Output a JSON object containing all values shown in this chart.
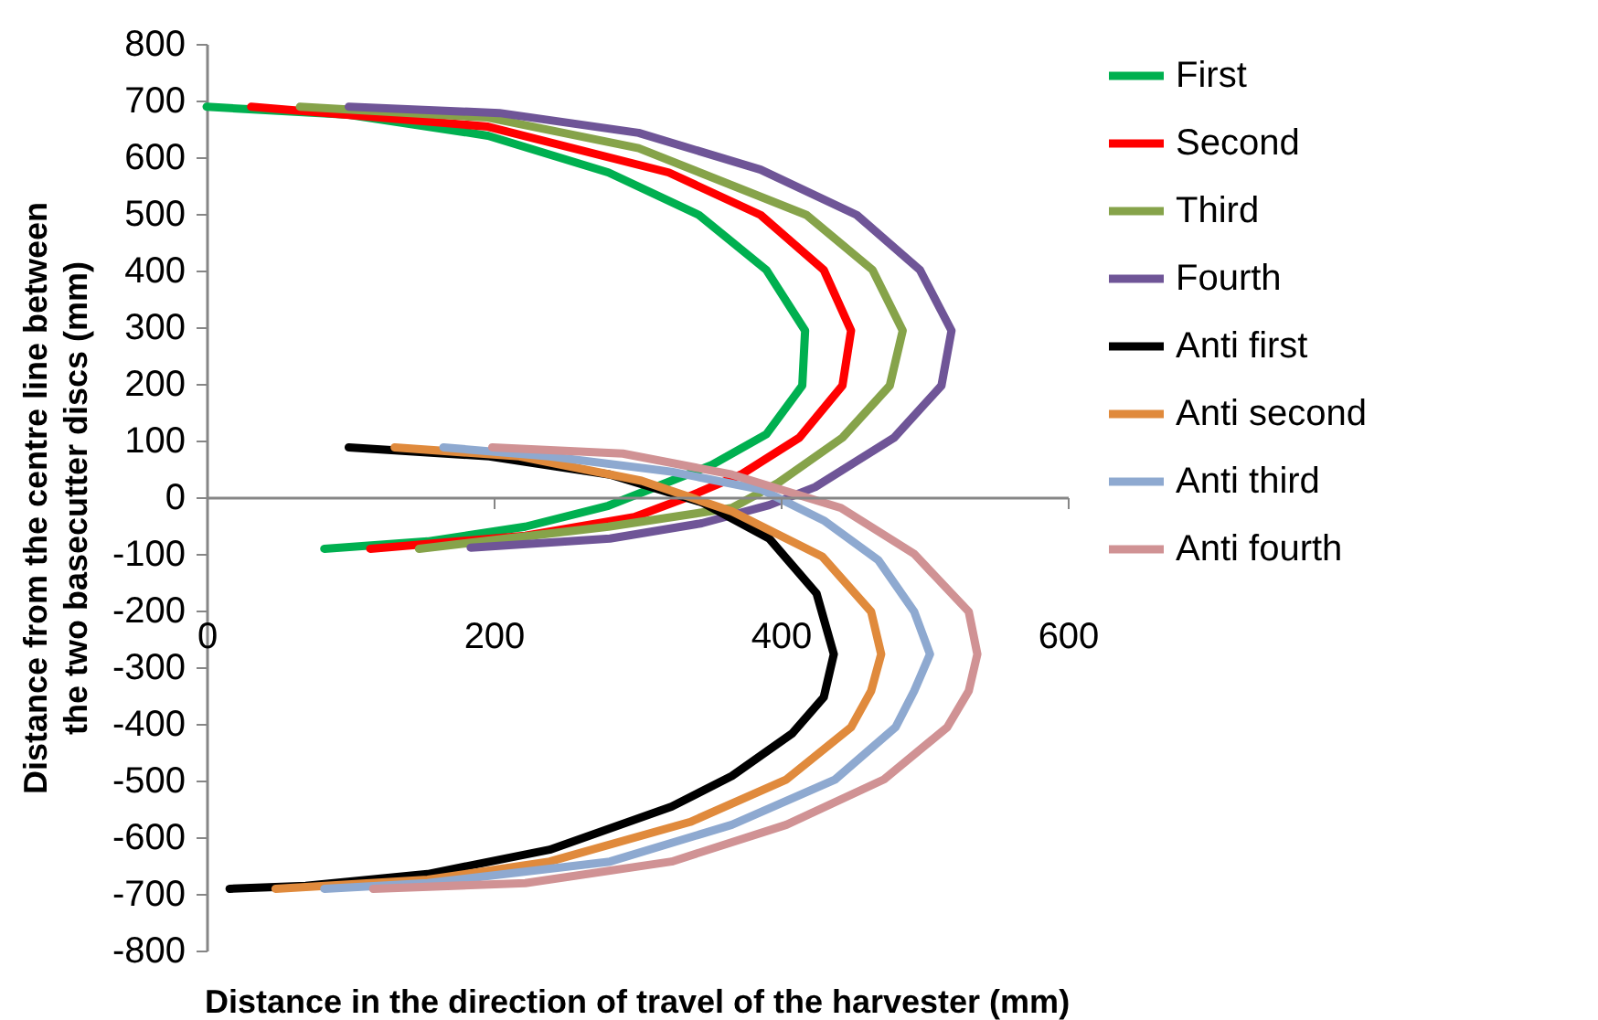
{
  "chart_data": {
    "type": "line",
    "xlabel": "Distance in the direction of travel of the harvester (mm)",
    "ylabel": "Distance from the centre line between the two basecutter discs (mm)",
    "xlim": [
      0,
      600
    ],
    "xticks": [
      0,
      200,
      400,
      600
    ],
    "ylim": [
      -800,
      800
    ],
    "yticks": [
      -800,
      -700,
      -600,
      -500,
      -400,
      -300,
      -200,
      -100,
      0,
      100,
      200,
      300,
      400,
      500,
      600,
      700,
      800
    ],
    "legend": "right",
    "marker": "none",
    "line_style": "solid",
    "series": [
      {
        "name": "First",
        "color": "#00b050",
        "x": [
          0,
          99,
          196,
          280,
          343,
          390,
          417,
          415,
          390,
          352,
          280,
          222,
          154,
          82
        ],
        "values": [
          689,
          675,
          638,
          573,
          498,
          401,
          294,
          197,
          111,
          57,
          -15,
          -52,
          -78,
          -91
        ]
      },
      {
        "name": "Second",
        "color": "#ff0000",
        "x": [
          31,
          196,
          322,
          386,
          430,
          449,
          443,
          413,
          373,
          335,
          298,
          222,
          114
        ],
        "values": [
          689,
          654,
          573,
          498,
          401,
          294,
          197,
          105,
          41,
          0,
          -35,
          -68,
          -91
        ]
      },
      {
        "name": "Third",
        "color": "#86a34a",
        "x": [
          65,
          196,
          301,
          418,
          464,
          485,
          476,
          443,
          398,
          366,
          280,
          148
        ],
        "values": [
          689,
          670,
          616,
          498,
          401,
          294,
          197,
          105,
          25,
          -19,
          -52,
          -91
        ]
      },
      {
        "name": "Fourth",
        "color": "#6f5597",
        "x": [
          99,
          204,
          301,
          386,
          453,
          497,
          519,
          512,
          479,
          424,
          392,
          345,
          281,
          184
        ],
        "values": [
          689,
          678,
          643,
          578,
          498,
          401,
          294,
          197,
          105,
          18,
          -14,
          -46,
          -73,
          -89
        ]
      },
      {
        "name": "Anti first",
        "color": "#000000",
        "x": [
          99,
          197,
          281,
          345,
          392,
          425,
          437,
          430,
          408,
          366,
          324,
          239,
          154,
          69,
          16
        ],
        "values": [
          88,
          72,
          40,
          -9,
          -73,
          -170,
          -277,
          -353,
          -417,
          -492,
          -546,
          -622,
          -665,
          -686,
          -691
        ]
      },
      {
        "name": "Anti second",
        "color": "#e08a3c",
        "x": [
          131,
          218,
          303,
          366,
          429,
          463,
          470,
          463,
          449,
          404,
          337,
          239,
          154,
          48
        ],
        "values": [
          88,
          72,
          29,
          -25,
          -105,
          -202,
          -277,
          -342,
          -406,
          -498,
          -573,
          -643,
          -675,
          -691
        ]
      },
      {
        "name": "Anti third",
        "color": "#8ea9d0",
        "x": [
          165,
          239,
          324,
          387,
          430,
          468,
          493,
          504,
          493,
          480,
          438,
          366,
          281,
          154,
          82
        ],
        "values": [
          88,
          72,
          45,
          13,
          -41,
          -111,
          -202,
          -277,
          -342,
          -406,
          -498,
          -578,
          -643,
          -681,
          -691
        ]
      },
      {
        "name": "Anti fourth",
        "color": "#d09294",
        "x": [
          199,
          290,
          366,
          442,
          493,
          531,
          537,
          531,
          516,
          472,
          404,
          324,
          222,
          116
        ],
        "values": [
          88,
          77,
          40,
          -19,
          -100,
          -202,
          -277,
          -342,
          -406,
          -498,
          -578,
          -643,
          -681,
          -691
        ]
      }
    ]
  }
}
